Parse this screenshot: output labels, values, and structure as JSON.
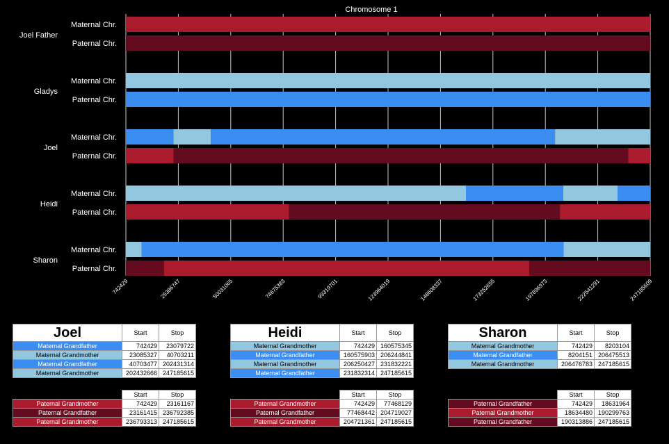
{
  "colors": {
    "Maternal Grandfather": "#3b8df2",
    "Maternal Grandmother": "#93c6df",
    "Paternal Grandmother": "#ab1b2e",
    "Paternal Grandfather": "#650b20"
  },
  "chart_data": {
    "type": "bar",
    "title": "Chromosome 1",
    "xlim": [
      742429,
      247185609
    ],
    "xticks": [
      "742429",
      "25386747",
      "50031065",
      "74675383",
      "99319701",
      "123964019",
      "148608337",
      "173252655",
      "197896973",
      "222541291",
      "247185609"
    ],
    "people": [
      {
        "name": "Joel Father",
        "tracks": [
          {
            "label": "Maternal Chr.",
            "segments": [
              {
                "start": 742429,
                "stop": 247185609,
                "color": "#ab1b2e"
              }
            ]
          },
          {
            "label": "Paternal Chr.",
            "segments": [
              {
                "start": 742429,
                "stop": 247185609,
                "color": "#650b20"
              }
            ]
          }
        ]
      },
      {
        "name": "Gladys",
        "tracks": [
          {
            "label": "Maternal Chr.",
            "segments": [
              {
                "start": 742429,
                "stop": 247185609,
                "color": "#93c6df"
              }
            ]
          },
          {
            "label": "Paternal Chr.",
            "segments": [
              {
                "start": 742429,
                "stop": 247185609,
                "color": "#3b8df2"
              }
            ]
          }
        ]
      },
      {
        "name": "Joel",
        "tracks": [
          {
            "label": "Maternal Chr.",
            "segments": [
              {
                "start": 742429,
                "stop": 23079722,
                "color": "#3b8df2"
              },
              {
                "start": 23085327,
                "stop": 40703211,
                "color": "#93c6df"
              },
              {
                "start": 40703477,
                "stop": 202431314,
                "color": "#3b8df2"
              },
              {
                "start": 202432666,
                "stop": 247185615,
                "color": "#93c6df"
              }
            ]
          },
          {
            "label": "Paternal Chr.",
            "segments": [
              {
                "start": 742429,
                "stop": 23161167,
                "color": "#ab1b2e"
              },
              {
                "start": 23161415,
                "stop": 236792385,
                "color": "#650b20"
              },
              {
                "start": 236793313,
                "stop": 247185615,
                "color": "#ab1b2e"
              }
            ]
          }
        ]
      },
      {
        "name": "Heidi",
        "tracks": [
          {
            "label": "Maternal Chr.",
            "segments": [
              {
                "start": 742429,
                "stop": 160575345,
                "color": "#93c6df"
              },
              {
                "start": 160575903,
                "stop": 206244841,
                "color": "#3b8df2"
              },
              {
                "start": 206250427,
                "stop": 231832221,
                "color": "#93c6df"
              },
              {
                "start": 231832314,
                "stop": 247185615,
                "color": "#3b8df2"
              }
            ]
          },
          {
            "label": "Paternal Chr.",
            "segments": [
              {
                "start": 742429,
                "stop": 77468129,
                "color": "#ab1b2e"
              },
              {
                "start": 77468442,
                "stop": 204719027,
                "color": "#650b20"
              },
              {
                "start": 204721361,
                "stop": 247185615,
                "color": "#ab1b2e"
              }
            ]
          }
        ]
      },
      {
        "name": "Sharon",
        "tracks": [
          {
            "label": "Maternal Chr.",
            "segments": [
              {
                "start": 742429,
                "stop": 8203104,
                "color": "#93c6df"
              },
              {
                "start": 8204151,
                "stop": 206475513,
                "color": "#3b8df2"
              },
              {
                "start": 206476783,
                "stop": 247185615,
                "color": "#93c6df"
              }
            ]
          },
          {
            "label": "Paternal Chr.",
            "segments": [
              {
                "start": 742429,
                "stop": 18631964,
                "color": "#650b20"
              },
              {
                "start": 18634480,
                "stop": 190299763,
                "color": "#ab1b2e"
              },
              {
                "start": 190313886,
                "stop": 247185615,
                "color": "#650b20"
              }
            ]
          }
        ]
      }
    ]
  },
  "tables": {
    "start_label": "Start",
    "stop_label": "Stop",
    "blocks": [
      {
        "title": "Joel",
        "maternal": [
          {
            "name": "Maternal Grandfather",
            "start": "742429",
            "stop": "23079722"
          },
          {
            "name": "Maternal Grandmother",
            "start": "23085327",
            "stop": "40703211"
          },
          {
            "name": "Maternal Grandfather",
            "start": "40703477",
            "stop": "202431314"
          },
          {
            "name": "Maternal Grandmother",
            "start": "202432666",
            "stop": "247185615"
          }
        ],
        "paternal": [
          {
            "name": "Paternal Grandmother",
            "start": "742429",
            "stop": "23161167"
          },
          {
            "name": "Paternal Grandfather",
            "start": "23161415",
            "stop": "236792385"
          },
          {
            "name": "Paternal Grandmother",
            "start": "236793313",
            "stop": "247185615"
          }
        ]
      },
      {
        "title": "Heidi",
        "maternal": [
          {
            "name": "Maternal Grandmother",
            "start": "742429",
            "stop": "160575345"
          },
          {
            "name": "Maternal Grandfather",
            "start": "160575903",
            "stop": "206244841"
          },
          {
            "name": "Maternal Grandmother",
            "start": "206250427",
            "stop": "231832221"
          },
          {
            "name": "Maternal Grandfather",
            "start": "231832314",
            "stop": "247185615"
          }
        ],
        "paternal": [
          {
            "name": "Paternal Grandmother",
            "start": "742429",
            "stop": "77468129"
          },
          {
            "name": "Paternal Grandfather",
            "start": "77468442",
            "stop": "204719027"
          },
          {
            "name": "Paternal Grandmother",
            "start": "204721361",
            "stop": "247185615"
          }
        ]
      },
      {
        "title": "Sharon",
        "maternal": [
          {
            "name": "Maternal Grandmother",
            "start": "742429",
            "stop": "8203104"
          },
          {
            "name": "Maternal Grandfather",
            "start": "8204151",
            "stop": "206475513"
          },
          {
            "name": "Maternal Grandmother",
            "start": "206476783",
            "stop": "247185615"
          }
        ],
        "paternal": [
          {
            "name": "Paternal Grandfather",
            "start": "742429",
            "stop": "18631964"
          },
          {
            "name": "Paternal Grandmother",
            "start": "18634480",
            "stop": "190299763"
          },
          {
            "name": "Paternal Grandfather",
            "start": "190313886",
            "stop": "247185615"
          }
        ]
      }
    ]
  }
}
